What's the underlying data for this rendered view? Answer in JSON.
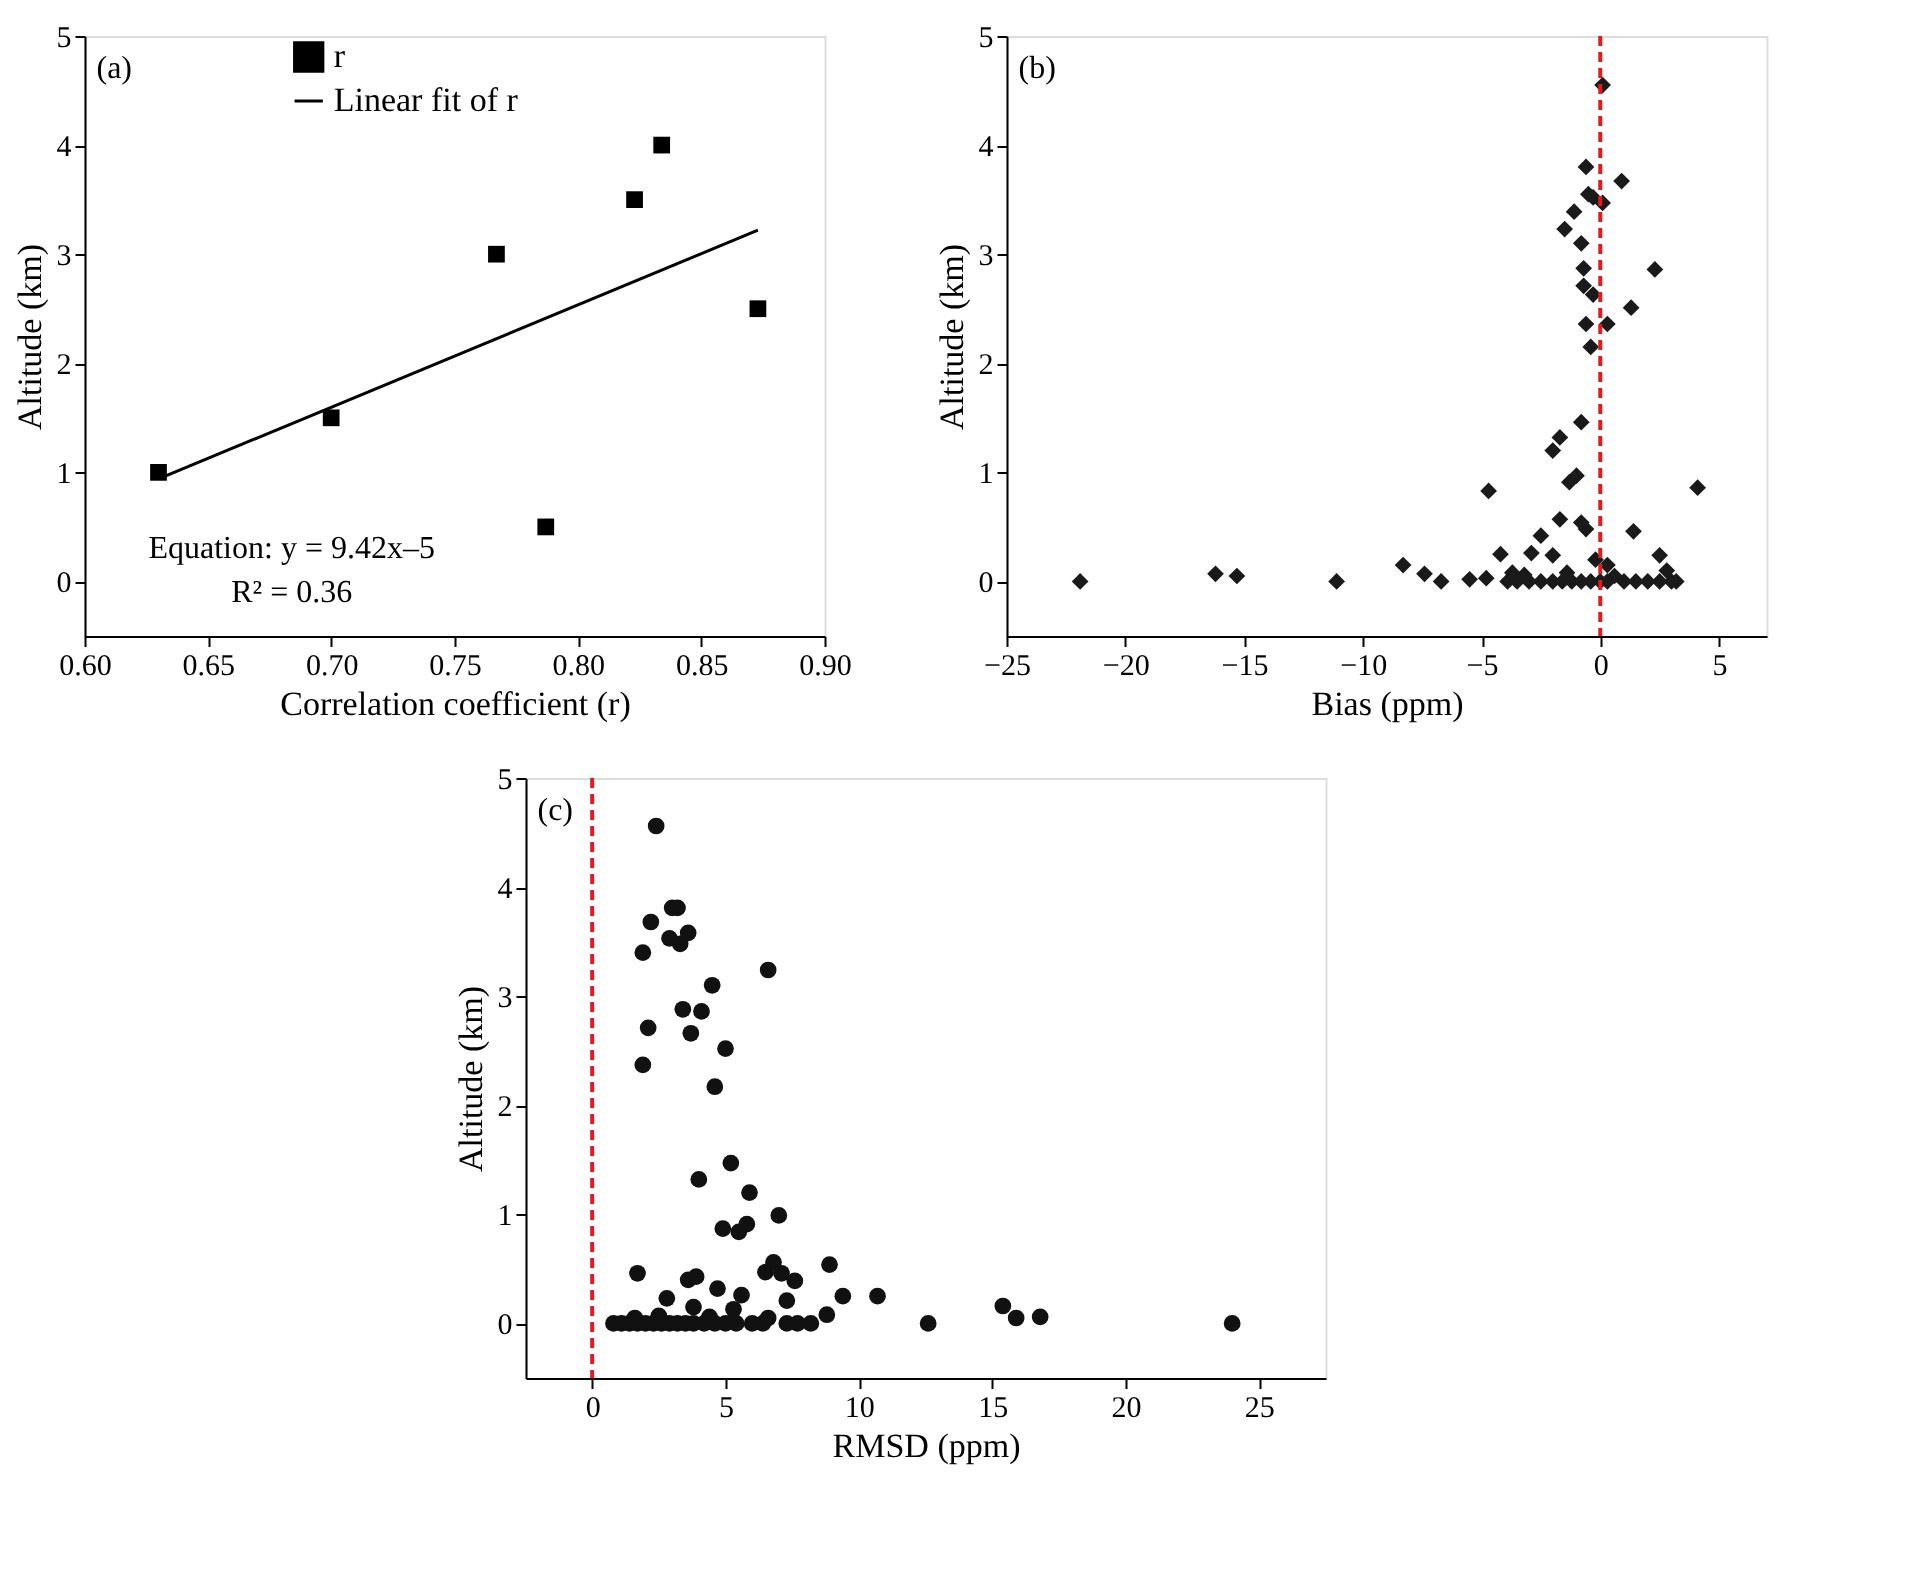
{
  "chart_data": [
    {
      "type": "scatter",
      "xlabel": "Correlation coefficient (r)",
      "ylabel": "Altitude (km)",
      "xlim": [
        0.6,
        0.9
      ],
      "ylim": [
        -0.5,
        5
      ],
      "xticks": [
        {
          "value": 0.6,
          "label": "0.60"
        },
        {
          "value": 0.65,
          "label": "0.65"
        },
        {
          "value": 0.7,
          "label": "0.70"
        },
        {
          "value": 0.75,
          "label": "0.75"
        },
        {
          "value": 0.8,
          "label": "0.80"
        },
        {
          "value": 0.85,
          "label": "0.85"
        },
        {
          "value": 0.9,
          "label": "0.90"
        }
      ],
      "yticks": [
        0,
        1,
        2,
        3,
        4,
        5
      ],
      "grid": false,
      "legend": "top left",
      "series": [
        {
          "name": "r",
          "marker": "square",
          "color": "#000000",
          "x": [
            0.63,
            0.7,
            0.767,
            0.787,
            0.823,
            0.834,
            0.873
          ],
          "values": [
            1,
            1.5,
            3,
            0.5,
            3.5,
            4,
            2.5
          ]
        },
        {
          "name": "Linear fit of r",
          "type": "line",
          "marker": "none",
          "line_style": "solid",
          "color": "#000000",
          "x": [
            0.63,
            0.873
          ],
          "values": [
            0.94,
            3.22
          ]
        }
      ],
      "annotations": [
        "(a)",
        "Equation: y = 9.42x–5",
        "R² = 0.36"
      ]
    },
    {
      "type": "scatter",
      "xlabel": "Bias (ppm)",
      "ylabel": "Altitude (km)",
      "xlim": [
        -25,
        7
      ],
      "ylim": [
        -0.5,
        5
      ],
      "xticks": [
        -25,
        -20,
        -15,
        -10,
        -5,
        0,
        5
      ],
      "yticks": [
        0,
        1,
        2,
        3,
        4,
        5
      ],
      "grid": false,
      "legend": false,
      "series": [
        {
          "marker": "diamond",
          "color": "#1a1a1a",
          "x": [
            0.1,
            -0.6,
            0.9,
            -0.5,
            -0.3,
            0.1,
            -1.1,
            -1.5,
            -0.8,
            -0.7,
            2.3,
            -0.7,
            -0.3,
            1.3,
            -0.6,
            0.3,
            -0.4,
            -0.8,
            -1.7,
            -2.0,
            -1.0,
            -1.3,
            -4.7,
            4.1,
            -1.7,
            -0.8,
            -0.6,
            1.4,
            -2.5,
            -2.9,
            -2.0,
            -4.2,
            -8.3,
            2.5,
            -0.2,
            0.3,
            -7.4,
            -6.7,
            -21.9,
            -16.2,
            -15.3,
            -11.1,
            -5.5,
            -4.8,
            -3.7,
            -3.9,
            -3.5,
            -3.0,
            -2.5,
            -2.0,
            -1.6,
            -1.2,
            -0.8,
            -0.4,
            0.0,
            0.3,
            1.0,
            1.5,
            2.0,
            2.5,
            3.0,
            3.2,
            -3.2,
            -1.4,
            2.8,
            0.6
          ],
          "values": [
            4.55,
            3.8,
            3.67,
            3.55,
            3.52,
            3.47,
            3.39,
            3.23,
            3.1,
            2.87,
            2.86,
            2.71,
            2.63,
            2.51,
            2.36,
            2.36,
            2.15,
            1.46,
            1.32,
            1.2,
            0.97,
            0.91,
            0.83,
            0.86,
            0.57,
            0.54,
            0.48,
            0.46,
            0.42,
            0.26,
            0.24,
            0.25,
            0.15,
            0.24,
            0.2,
            0.15,
            0.07,
            0,
            0,
            0.07,
            0.05,
            0,
            0.02,
            0.03,
            0.08,
            0,
            0,
            0,
            0,
            0,
            0,
            0,
            0,
            0,
            0,
            0,
            0,
            0,
            0,
            0,
            0,
            0,
            0.06,
            0.08,
            0.1,
            0.05
          ]
        }
      ],
      "ref_lines": [
        {
          "axis": "x",
          "value": 0,
          "color": "#e41a1c",
          "line_style": "dashed"
        }
      ],
      "annotations": [
        "(b)"
      ]
    },
    {
      "type": "scatter",
      "xlabel": "RMSD (ppm)",
      "ylabel": "Altitude (km)",
      "xlim": [
        -2.5,
        27.5
      ],
      "ylim": [
        -0.5,
        5
      ],
      "xticks": [
        0,
        5,
        10,
        15,
        20,
        25
      ],
      "yticks": [
        0,
        1,
        2,
        3,
        4,
        5
      ],
      "grid": false,
      "legend": false,
      "series": [
        {
          "marker": "circle",
          "color": "#111111",
          "x": [
            2.4,
            3.0,
            3.2,
            2.2,
            1.9,
            2.9,
            3.3,
            3.6,
            6.6,
            4.5,
            3.4,
            4.1,
            2.1,
            3.7,
            5.0,
            1.9,
            4.6,
            5.2,
            4.0,
            5.9,
            7.0,
            4.9,
            5.5,
            5.8,
            1.7,
            3.6,
            3.9,
            6.5,
            6.8,
            7.1,
            7.6,
            8.9,
            4.7,
            5.6,
            7.3,
            9.4,
            10.7,
            2.8,
            3.8,
            12.6,
            15.4,
            15.9,
            16.8,
            24.0,
            8.8,
            5.3,
            0.8,
            1.1,
            1.4,
            1.7,
            2.0,
            2.3,
            2.6,
            2.9,
            3.2,
            3.5,
            3.8,
            4.2,
            4.6,
            5.0,
            5.4,
            6.0,
            6.4,
            7.3,
            7.7,
            8.2,
            1.6,
            2.5,
            4.4,
            6.6
          ],
          "values": [
            4.56,
            3.81,
            3.81,
            3.68,
            3.4,
            3.53,
            3.48,
            3.58,
            3.24,
            3.1,
            2.88,
            2.86,
            2.71,
            2.66,
            2.52,
            2.37,
            2.17,
            1.47,
            1.32,
            1.2,
            0.99,
            0.87,
            0.84,
            0.91,
            0.46,
            0.4,
            0.43,
            0.47,
            0.56,
            0.46,
            0.39,
            0.54,
            0.32,
            0.26,
            0.21,
            0.25,
            0.25,
            0.23,
            0.15,
            0,
            0.16,
            0.05,
            0.06,
            0,
            0.08,
            0.13,
            0,
            0,
            0,
            0,
            0,
            0,
            0,
            0,
            0,
            0,
            0,
            0,
            0,
            0,
            0,
            0,
            0,
            0,
            0,
            0,
            0.05,
            0.07,
            0.06,
            0.05
          ]
        }
      ],
      "ref_lines": [
        {
          "axis": "x",
          "value": 0,
          "color": "#e41a1c",
          "line_style": "dashed"
        }
      ],
      "annotations": [
        "(c)"
      ]
    }
  ]
}
